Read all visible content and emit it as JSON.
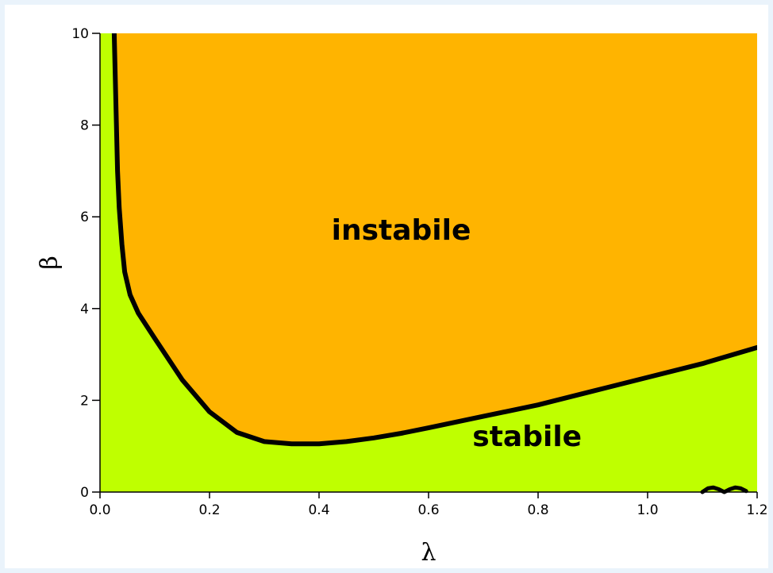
{
  "chart_data": {
    "type": "area",
    "title": "",
    "xlabel": "λ",
    "ylabel": "β",
    "xlim": [
      0.0,
      1.2
    ],
    "ylim": [
      0,
      10
    ],
    "x_ticks": [
      "0.0",
      "0.2",
      "0.4",
      "0.6",
      "0.8",
      "1.0",
      "1.2"
    ],
    "y_ticks": [
      "0",
      "2",
      "4",
      "6",
      "8",
      "10"
    ],
    "regions": [
      {
        "name": "instabile",
        "color": "#ffb400",
        "position": "above boundary"
      },
      {
        "name": "stabile",
        "color": "#bfff00",
        "position": "below boundary"
      }
    ],
    "boundary": {
      "color": "#000000",
      "x": [
        0.026,
        0.028,
        0.03,
        0.032,
        0.035,
        0.04,
        0.045,
        0.055,
        0.07,
        0.1,
        0.15,
        0.2,
        0.25,
        0.3,
        0.35,
        0.4,
        0.45,
        0.5,
        0.55,
        0.6,
        0.7,
        0.8,
        0.9,
        1.0,
        1.1,
        1.2
      ],
      "y": [
        10.0,
        9.0,
        8.0,
        7.0,
        6.2,
        5.4,
        4.8,
        4.3,
        3.9,
        3.35,
        2.45,
        1.75,
        1.3,
        1.1,
        1.05,
        1.05,
        1.1,
        1.18,
        1.28,
        1.4,
        1.65,
        1.9,
        2.2,
        2.5,
        2.8,
        3.15
      ]
    },
    "secondary_curve": {
      "color": "#000000",
      "x": [
        1.1,
        1.11,
        1.12,
        1.13,
        1.14,
        1.15,
        1.16,
        1.17,
        1.18
      ],
      "y": [
        0.0,
        0.08,
        0.1,
        0.06,
        0.0,
        0.06,
        0.1,
        0.08,
        0.02
      ]
    },
    "annotations": [
      {
        "text": "instabile",
        "x": 0.55,
        "y": 5.5
      },
      {
        "text": "stabile",
        "x": 0.78,
        "y": 1.0
      }
    ],
    "grid": false,
    "legend": "none"
  }
}
